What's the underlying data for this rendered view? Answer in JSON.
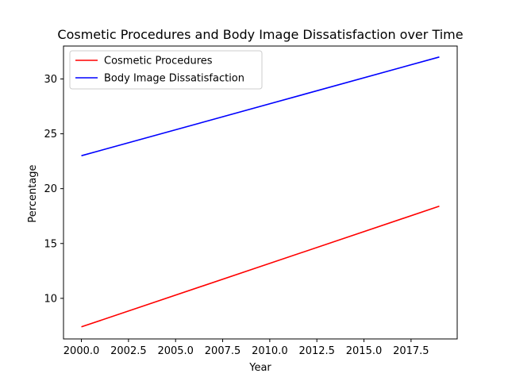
{
  "chart_data": {
    "type": "line",
    "title": "Cosmetic Procedures and Body Image Dissatisfaction over Time",
    "xlabel": "Year",
    "ylabel": "Percentage",
    "x": [
      2000,
      2019
    ],
    "xlim": [
      2000,
      2019
    ],
    "ylim": [
      6.3,
      33.0
    ],
    "xticks": [
      2000.0,
      2002.5,
      2005.0,
      2007.5,
      2010.0,
      2012.5,
      2015.0,
      2017.5
    ],
    "xtick_labels": [
      "2000.0",
      "2002.5",
      "2005.0",
      "2007.5",
      "2010.0",
      "2012.5",
      "2015.0",
      "2017.5"
    ],
    "yticks": [
      10,
      15,
      20,
      25,
      30
    ],
    "ytick_labels": [
      "10",
      "15",
      "20",
      "25",
      "30"
    ],
    "grid": false,
    "legend_position": "top-left",
    "series": [
      {
        "name": "Cosmetic Procedures",
        "color": "#ff0000",
        "values": [
          7.4,
          18.4
        ]
      },
      {
        "name": "Body Image Dissatisfaction",
        "color": "#0000ff",
        "values": [
          23.0,
          32.0
        ]
      }
    ]
  }
}
